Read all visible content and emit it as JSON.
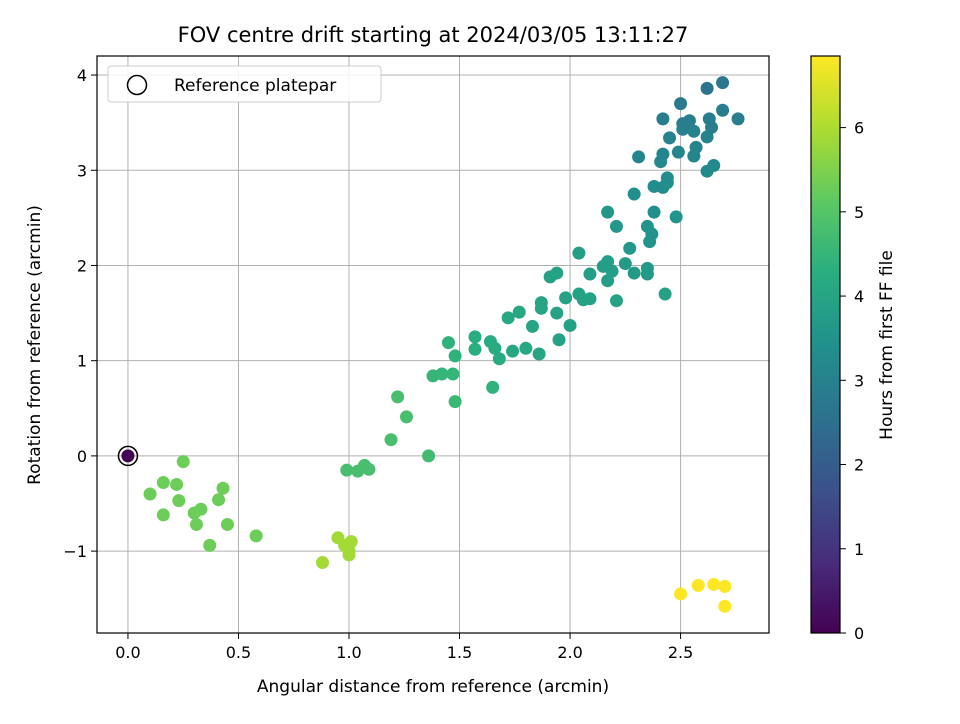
{
  "chart_data": {
    "type": "scatter",
    "title": "FOV centre drift starting at 2024/03/05 13:11:27",
    "xlabel": "Angular distance from reference (arcmin)",
    "ylabel": "Rotation from reference (arcmin)",
    "xlim": [
      -0.14,
      2.9
    ],
    "ylim": [
      -1.86,
      4.2
    ],
    "x_ticks": [
      "0.0",
      "0.5",
      "1.0",
      "1.5",
      "2.0",
      "2.5"
    ],
    "y_ticks": [
      "−1",
      "0",
      "1",
      "2",
      "3",
      "4"
    ],
    "grid": true,
    "legend": {
      "position": "top-left",
      "label": "Reference platepar"
    },
    "colorbar": {
      "label": "Hours from first FF file",
      "colormap": "viridis",
      "min": 0,
      "max": 6.85,
      "ticks": [
        "0",
        "1",
        "2",
        "3",
        "4",
        "5",
        "6"
      ]
    },
    "reference_point": {
      "x": 0.0,
      "y": 0.0,
      "hours": 0.05
    },
    "points": [
      [
        0.1,
        -0.4,
        5.3
      ],
      [
        0.16,
        -0.28,
        5.3
      ],
      [
        0.16,
        -0.62,
        5.3
      ],
      [
        0.22,
        -0.3,
        5.3
      ],
      [
        0.23,
        -0.47,
        5.3
      ],
      [
        0.25,
        -0.06,
        5.3
      ],
      [
        0.3,
        -0.6,
        5.3
      ],
      [
        0.31,
        -0.72,
        5.3
      ],
      [
        0.33,
        -0.56,
        5.3
      ],
      [
        0.37,
        -0.94,
        5.3
      ],
      [
        0.41,
        -0.46,
        5.3
      ],
      [
        0.43,
        -0.34,
        5.3
      ],
      [
        0.45,
        -0.72,
        5.3
      ],
      [
        0.58,
        -0.84,
        5.3
      ],
      [
        0.88,
        -1.12,
        5.9
      ],
      [
        0.95,
        -0.86,
        5.9
      ],
      [
        0.98,
        -0.94,
        5.9
      ],
      [
        1.0,
        -1.0,
        5.9
      ],
      [
        1.0,
        -1.04,
        5.9
      ],
      [
        1.01,
        -0.9,
        5.9
      ],
      [
        0.99,
        -0.15,
        4.8
      ],
      [
        1.04,
        -0.16,
        4.8
      ],
      [
        1.07,
        -0.1,
        4.8
      ],
      [
        1.09,
        -0.14,
        4.8
      ],
      [
        1.19,
        0.17,
        4.8
      ],
      [
        1.22,
        0.62,
        4.8
      ],
      [
        1.26,
        0.41,
        4.8
      ],
      [
        1.36,
        0.0,
        4.7
      ],
      [
        1.38,
        0.84,
        4.5
      ],
      [
        1.42,
        0.86,
        4.5
      ],
      [
        1.45,
        1.19,
        4.4
      ],
      [
        1.47,
        0.86,
        4.5
      ],
      [
        1.48,
        1.05,
        4.4
      ],
      [
        1.48,
        0.57,
        4.6
      ],
      [
        1.57,
        1.25,
        4.3
      ],
      [
        1.57,
        1.12,
        4.3
      ],
      [
        1.64,
        1.2,
        4.2
      ],
      [
        1.65,
        0.72,
        4.4
      ],
      [
        1.66,
        1.13,
        4.2
      ],
      [
        1.68,
        1.02,
        4.2
      ],
      [
        1.72,
        1.45,
        4.1
      ],
      [
        1.74,
        1.1,
        4.1
      ],
      [
        1.77,
        1.51,
        4.1
      ],
      [
        1.8,
        1.13,
        4.1
      ],
      [
        1.83,
        1.36,
        4.0
      ],
      [
        1.86,
        1.07,
        4.0
      ],
      [
        1.87,
        1.55,
        4.0
      ],
      [
        1.87,
        1.61,
        4.0
      ],
      [
        1.91,
        1.88,
        3.9
      ],
      [
        1.94,
        1.92,
        3.9
      ],
      [
        1.94,
        1.5,
        3.9
      ],
      [
        1.95,
        1.22,
        3.9
      ],
      [
        1.98,
        1.66,
        3.9
      ],
      [
        2.0,
        1.37,
        3.9
      ],
      [
        2.04,
        2.13,
        3.8
      ],
      [
        2.04,
        1.7,
        3.9
      ],
      [
        2.06,
        1.64,
        3.9
      ],
      [
        2.09,
        1.65,
        3.9
      ],
      [
        2.09,
        1.91,
        3.8
      ],
      [
        2.15,
        1.99,
        3.8
      ],
      [
        2.17,
        2.04,
        3.8
      ],
      [
        2.17,
        1.84,
        3.8
      ],
      [
        2.17,
        2.56,
        3.6
      ],
      [
        2.19,
        1.94,
        3.8
      ],
      [
        2.21,
        2.41,
        3.6
      ],
      [
        2.21,
        1.63,
        3.9
      ],
      [
        2.25,
        2.02,
        3.7
      ],
      [
        2.27,
        2.18,
        3.6
      ],
      [
        2.29,
        1.92,
        3.7
      ],
      [
        2.29,
        2.75,
        3.4
      ],
      [
        2.31,
        3.14,
        3.1
      ],
      [
        2.35,
        1.97,
        3.7
      ],
      [
        2.35,
        1.91,
        3.7
      ],
      [
        2.35,
        2.41,
        3.5
      ],
      [
        2.36,
        2.25,
        3.5
      ],
      [
        2.37,
        2.33,
        3.5
      ],
      [
        2.38,
        2.83,
        3.3
      ],
      [
        2.38,
        2.56,
        3.4
      ],
      [
        2.41,
        3.09,
        3.2
      ],
      [
        2.42,
        3.54,
        2.9
      ],
      [
        2.42,
        3.17,
        3.1
      ],
      [
        2.42,
        2.82,
        3.3
      ],
      [
        2.43,
        1.7,
        3.9
      ],
      [
        2.44,
        2.92,
        3.3
      ],
      [
        2.44,
        2.87,
        3.3
      ],
      [
        2.45,
        3.34,
        3.0
      ],
      [
        2.48,
        2.51,
        3.5
      ],
      [
        2.49,
        3.19,
        3.1
      ],
      [
        2.5,
        3.7,
        2.8
      ],
      [
        2.51,
        3.49,
        2.9
      ],
      [
        2.51,
        3.43,
        3.0
      ],
      [
        2.53,
        3.46,
        2.9
      ],
      [
        2.54,
        3.52,
        2.9
      ],
      [
        2.56,
        3.15,
        3.1
      ],
      [
        2.56,
        3.41,
        3.0
      ],
      [
        2.57,
        3.24,
        3.1
      ],
      [
        2.62,
        3.86,
        2.6
      ],
      [
        2.62,
        3.35,
        3.0
      ],
      [
        2.62,
        2.99,
        3.2
      ],
      [
        2.63,
        3.54,
        2.9
      ],
      [
        2.64,
        3.45,
        2.9
      ],
      [
        2.65,
        3.05,
        3.2
      ],
      [
        2.69,
        3.92,
        2.7
      ],
      [
        2.69,
        3.63,
        2.9
      ],
      [
        2.76,
        3.54,
        2.9
      ],
      [
        2.5,
        -1.45,
        6.85
      ],
      [
        2.58,
        -1.36,
        6.85
      ],
      [
        2.65,
        -1.35,
        6.85
      ],
      [
        2.7,
        -1.37,
        6.85
      ],
      [
        2.7,
        -1.58,
        6.85
      ]
    ]
  }
}
